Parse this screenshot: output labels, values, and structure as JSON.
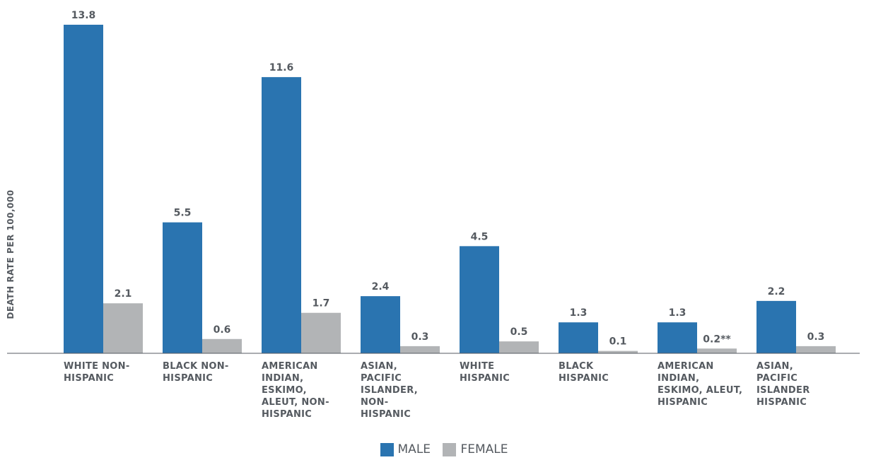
{
  "chart_data": {
    "type": "bar",
    "title": "",
    "xlabel": "",
    "ylabel": "DEATH RATE PER 100,000",
    "ylim": [
      0,
      13.8
    ],
    "grid": false,
    "legend_position": "bottom-center",
    "categories": [
      "WHITE NON-\nHISPANIC",
      "BLACK NON-\nHISPANIC",
      "AMERICAN\nINDIAN,\nESKIMO,\nALEUT, NON-\nHISPANIC",
      "ASIAN,\nPACIFIC\nISLANDER,\nNON-\nHISPANIC",
      "WHITE\nHISPANIC",
      "BLACK\nHISPANIC",
      "AMERICAN\nINDIAN,\nESKIMO, ALEUT,\nHISPANIC",
      "ASIAN,\nPACIFIC\nISLANDER\nHISPANIC"
    ],
    "series": [
      {
        "name": "MALE",
        "color": "#2a74b0",
        "values": [
          13.8,
          5.5,
          11.6,
          2.4,
          4.5,
          1.3,
          1.3,
          2.2
        ],
        "labels": [
          "13.8",
          "5.5",
          "11.6",
          "2.4",
          "4.5",
          "1.3",
          "1.3",
          "2.2"
        ]
      },
      {
        "name": "FEMALE",
        "color": "#b2b4b6",
        "values": [
          2.1,
          0.6,
          1.7,
          0.3,
          0.5,
          0.1,
          0.2,
          0.3
        ],
        "labels": [
          "2.1",
          "0.6",
          "1.7",
          "0.3",
          "0.5",
          "0.1",
          "0.2**",
          "0.3"
        ]
      }
    ]
  }
}
